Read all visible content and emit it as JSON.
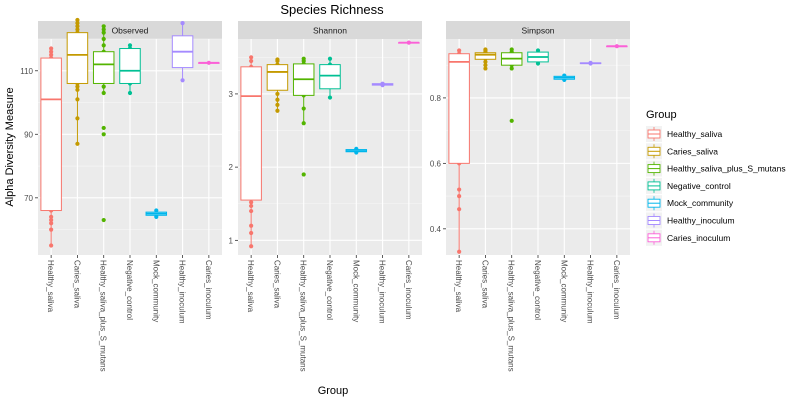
{
  "chart_data": {
    "type": "boxplot",
    "title": "Species Richness",
    "xlabel": "Group",
    "ylabel": "Alpha Diversity Measure",
    "categories": [
      "Healthy_saliva",
      "Caries_saliva",
      "Healthy_saliva_plus_S_mutans",
      "Negative_control",
      "Mock_community",
      "Healthy_inoculum",
      "Caries_inoculum"
    ],
    "legend": {
      "title": "Group",
      "placement": "right",
      "entries": [
        {
          "label": "Healthy_saliva",
          "color": "#F8766D"
        },
        {
          "label": "Caries_saliva",
          "color": "#C49A00"
        },
        {
          "label": "Healthy_saliva_plus_S_mutans",
          "color": "#53B400"
        },
        {
          "label": "Negative_control",
          "color": "#00C094"
        },
        {
          "label": "Mock_community",
          "color": "#00B6EB"
        },
        {
          "label": "Healthy_inoculum",
          "color": "#A58AFF"
        },
        {
          "label": "Caries_inoculum",
          "color": "#FB61D7"
        }
      ]
    },
    "panels": [
      {
        "strip": "Observed",
        "ylim": [
          52,
          120
        ],
        "yticks": [
          70,
          90,
          110
        ],
        "ytick_labels": [
          "70",
          "90",
          "110"
        ],
        "boxes": [
          {
            "q1": 66,
            "median": 101,
            "q3": 114,
            "whisker_low": 55,
            "whisker_high": 117,
            "points": [
              55,
              60,
              62,
              63,
              64,
              66,
              68,
              70,
              72,
              75,
              78,
              82,
              86,
              90,
              95,
              98,
              100,
              101,
              103,
              106,
              108,
              110,
              112,
              114,
              115,
              116,
              117
            ]
          },
          {
            "q1": 106,
            "median": 115,
            "q3": 122,
            "whisker_low": 87,
            "whisker_high": 126,
            "points": [
              87,
              95,
              101,
              104,
              105,
              106,
              108,
              110,
              112,
              114,
              115,
              117,
              119,
              121,
              122,
              123,
              124,
              125,
              126
            ]
          },
          {
            "q1": 106,
            "median": 112,
            "q3": 116,
            "whisker_low": 103,
            "whisker_high": 124,
            "points": [
              63,
              90,
              92,
              103,
              105,
              107,
              109,
              110,
              111,
              112,
              113,
              114,
              115,
              116,
              118,
              120,
              122,
              123,
              124
            ]
          },
          {
            "q1": 106,
            "median": 110,
            "q3": 117,
            "whisker_low": 103,
            "whisker_high": 118,
            "points": [
              103,
              106,
              110,
              117,
              118
            ]
          },
          {
            "q1": 64.5,
            "median": 65,
            "q3": 65.5,
            "whisker_low": 64,
            "whisker_high": 66,
            "points": [
              64,
              65,
              66
            ]
          },
          {
            "q1": 111,
            "median": 116,
            "q3": 121,
            "whisker_low": 107,
            "whisker_high": 125,
            "points": [
              107,
              125
            ]
          },
          {
            "q1": 112.5,
            "median": 112.5,
            "q3": 112.5,
            "whisker_low": 112.5,
            "whisker_high": 112.5,
            "points": [
              112.5
            ]
          }
        ]
      },
      {
        "strip": "Shannon",
        "ylim": [
          0.8,
          3.75
        ],
        "yticks": [
          1,
          2,
          3
        ],
        "ytick_labels": [
          "1",
          "2",
          "3"
        ],
        "boxes": [
          {
            "q1": 1.55,
            "median": 2.97,
            "q3": 3.37,
            "whisker_low": 0.92,
            "whisker_high": 3.5,
            "points": [
              0.92,
              1.1,
              1.2,
              1.4,
              1.47,
              1.52,
              1.7,
              2.0,
              2.4,
              2.8,
              3.0,
              3.2,
              3.3,
              3.37,
              3.45,
              3.5
            ]
          },
          {
            "q1": 3.05,
            "median": 3.3,
            "q3": 3.4,
            "whisker_low": 2.77,
            "whisker_high": 3.47,
            "points": [
              2.77,
              2.85,
              2.92,
              3.0,
              3.1,
              3.2,
              3.3,
              3.35,
              3.4,
              3.45,
              3.47
            ]
          },
          {
            "q1": 2.98,
            "median": 3.2,
            "q3": 3.41,
            "whisker_low": 2.6,
            "whisker_high": 3.48,
            "points": [
              1.9,
              2.6,
              2.8,
              2.98,
              3.1,
              3.2,
              3.3,
              3.41,
              3.45,
              3.48
            ]
          },
          {
            "q1": 3.07,
            "median": 3.25,
            "q3": 3.4,
            "whisker_low": 2.95,
            "whisker_high": 3.48,
            "points": [
              2.95,
              3.1,
              3.3,
              3.4,
              3.48
            ]
          },
          {
            "q1": 2.21,
            "median": 2.22,
            "q3": 2.24,
            "whisker_low": 2.2,
            "whisker_high": 2.25,
            "points": [
              2.2,
              2.22,
              2.25
            ]
          },
          {
            "q1": 3.12,
            "median": 3.13,
            "q3": 3.14,
            "whisker_low": 3.12,
            "whisker_high": 3.14,
            "points": [
              3.12,
              3.14
            ]
          },
          {
            "q1": 3.7,
            "median": 3.7,
            "q3": 3.7,
            "whisker_low": 3.7,
            "whisker_high": 3.7,
            "points": [
              3.7
            ]
          }
        ]
      },
      {
        "strip": "Simpson",
        "ylim": [
          0.32,
          0.98
        ],
        "yticks": [
          0.4,
          0.6,
          0.8
        ],
        "ytick_labels": [
          "0.4",
          "0.6",
          "0.8"
        ],
        "boxes": [
          {
            "q1": 0.6,
            "median": 0.91,
            "q3": 0.935,
            "whisker_low": 0.33,
            "whisker_high": 0.945,
            "points": [
              0.33,
              0.46,
              0.5,
              0.52,
              0.6,
              0.65,
              0.75,
              0.85,
              0.91,
              0.93,
              0.935,
              0.945
            ]
          },
          {
            "q1": 0.918,
            "median": 0.932,
            "q3": 0.938,
            "whisker_low": 0.89,
            "whisker_high": 0.948,
            "points": [
              0.89,
              0.9,
              0.91,
              0.92,
              0.93,
              0.935,
              0.94,
              0.945,
              0.948
            ]
          },
          {
            "q1": 0.9,
            "median": 0.92,
            "q3": 0.938,
            "whisker_low": 0.89,
            "whisker_high": 0.948,
            "points": [
              0.73,
              0.89,
              0.9,
              0.91,
              0.92,
              0.93,
              0.94,
              0.948
            ]
          },
          {
            "q1": 0.91,
            "median": 0.925,
            "q3": 0.94,
            "whisker_low": 0.905,
            "whisker_high": 0.945,
            "points": [
              0.905,
              0.92,
              0.935,
              0.945
            ]
          },
          {
            "q1": 0.857,
            "median": 0.862,
            "q3": 0.866,
            "whisker_low": 0.855,
            "whisker_high": 0.868,
            "points": [
              0.855,
              0.862,
              0.868
            ]
          },
          {
            "q1": 0.905,
            "median": 0.906,
            "q3": 0.907,
            "whisker_low": 0.905,
            "whisker_high": 0.907,
            "points": [
              0.905,
              0.907
            ]
          },
          {
            "q1": 0.958,
            "median": 0.958,
            "q3": 0.958,
            "whisker_low": 0.958,
            "whisker_high": 0.958,
            "points": [
              0.958
            ]
          }
        ]
      }
    ]
  }
}
